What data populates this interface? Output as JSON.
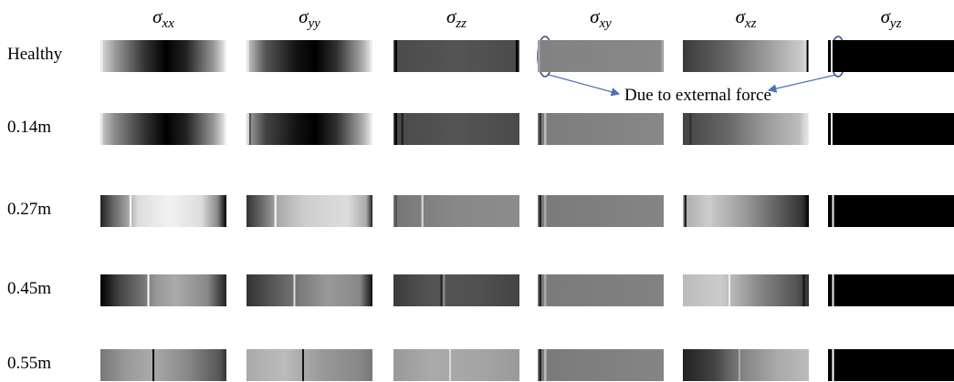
{
  "columns": [
    {
      "symbol": "σ",
      "subscript": "xx"
    },
    {
      "symbol": "σ",
      "subscript": "yy"
    },
    {
      "symbol": "σ",
      "subscript": "zz"
    },
    {
      "symbol": "σ",
      "subscript": "xy"
    },
    {
      "symbol": "σ",
      "subscript": "xz"
    },
    {
      "symbol": "σ",
      "subscript": "yz"
    }
  ],
  "rows": [
    "Healthy",
    "0.14m",
    "0.27m",
    "0.45m",
    "0.55m"
  ],
  "annotation": "Due to external force"
}
